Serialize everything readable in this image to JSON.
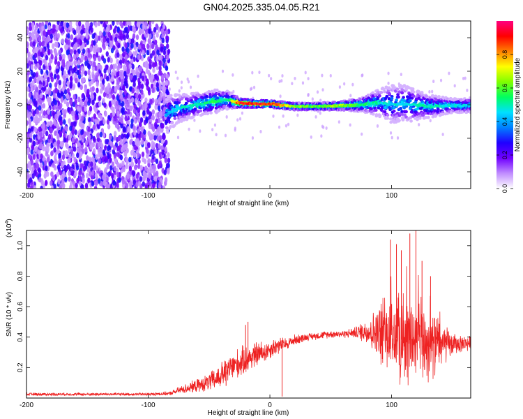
{
  "title": "GN04.2025.335.04.05.R21",
  "chart_data": [
    {
      "type": "heatmap",
      "title": "GN04.2025.335.04.05.R21",
      "xlabel": "Height of straight line (km)",
      "ylabel": "Frequency (Hz)",
      "xlim": [
        -200,
        165
      ],
      "ylim": [
        -50,
        50
      ],
      "xticks": [
        -200,
        -100,
        0,
        100
      ],
      "yticks": [
        -40,
        -20,
        0,
        20,
        40
      ],
      "colorbar": {
        "label": "Normalized spectral amplitude",
        "range": [
          0.0,
          1.0
        ],
        "ticks": [
          "0.0",
          "0.2",
          "0.4",
          "0.6",
          "0.8"
        ],
        "tick_values": [
          0.0,
          0.2,
          0.4,
          0.6,
          0.8
        ],
        "colors": [
          "#ffffff",
          "#c08cff",
          "#7000ff",
          "#2000ff",
          "#0080ff",
          "#00e0ff",
          "#00ff60",
          "#80ff00",
          "#ffff00",
          "#ff8000",
          "#ff0000",
          "#ff0080"
        ]
      },
      "noise_region_km": [
        -200,
        -83
      ],
      "signal_track": {
        "heights_km": [
          -85,
          -75,
          -60,
          -45,
          -35,
          -25,
          -10,
          0,
          20,
          40,
          60,
          75,
          85,
          100,
          110,
          130,
          150,
          165
        ],
        "center_freq_hz": [
          -6,
          -2,
          0,
          2,
          3,
          1,
          0.5,
          0.5,
          -1,
          -1,
          -0.5,
          0,
          1,
          0.5,
          0.5,
          -1,
          -0.5,
          -0.5
        ],
        "half_width_hz": [
          8,
          6,
          5,
          5,
          4,
          2,
          1.5,
          1.5,
          1.5,
          1.5,
          2,
          3,
          5,
          8,
          8,
          5,
          3,
          3
        ],
        "peak_amplitude": [
          0.45,
          0.5,
          0.55,
          0.6,
          0.55,
          0.95,
          0.97,
          0.97,
          0.7,
          0.65,
          0.7,
          0.6,
          0.55,
          0.5,
          0.5,
          0.55,
          0.5,
          0.5
        ]
      }
    },
    {
      "type": "line",
      "title": "",
      "xlabel": "Height of straight line (km)",
      "ylabel": "SNR (10 * v/v)",
      "scale_label": "(x10",
      "scale_exponent": "4",
      "scale_close": ")",
      "xlim": [
        -200,
        165
      ],
      "ylim": [
        0,
        1.1
      ],
      "xticks": [
        -200,
        -100,
        0,
        100
      ],
      "yticks": [
        "0.2",
        "0.4",
        "0.6",
        "0.8",
        "1.0"
      ],
      "ytick_values": [
        0.2,
        0.4,
        0.6,
        0.8,
        1.0
      ],
      "color": "#ee2222",
      "series": [
        {
          "name": "SNR",
          "x": [
            -200,
            -150,
            -100,
            -82,
            -75,
            -65,
            -55,
            -45,
            -40,
            -35,
            -30,
            -25,
            -20,
            -15,
            -10,
            -5,
            0,
            5,
            10,
            15,
            20,
            30,
            40,
            50,
            60,
            70,
            80,
            90,
            100,
            110,
            120,
            130,
            140,
            150,
            160,
            165
          ],
          "mean": [
            0.025,
            0.025,
            0.025,
            0.03,
            0.05,
            0.07,
            0.09,
            0.12,
            0.15,
            0.18,
            0.21,
            0.23,
            0.25,
            0.27,
            0.29,
            0.3,
            0.32,
            0.34,
            0.35,
            0.36,
            0.38,
            0.4,
            0.41,
            0.42,
            0.42,
            0.43,
            0.44,
            0.42,
            0.4,
            0.38,
            0.38,
            0.36,
            0.35,
            0.35,
            0.36,
            0.36
          ],
          "spread": [
            0.008,
            0.008,
            0.008,
            0.01,
            0.02,
            0.03,
            0.04,
            0.06,
            0.07,
            0.07,
            0.08,
            0.08,
            0.08,
            0.07,
            0.07,
            0.06,
            0.05,
            0.05,
            0.04,
            0.03,
            0.03,
            0.02,
            0.02,
            0.02,
            0.02,
            0.03,
            0.07,
            0.16,
            0.22,
            0.24,
            0.24,
            0.2,
            0.14,
            0.06,
            0.04,
            0.04
          ]
        }
      ],
      "spikes": [
        {
          "x": -36,
          "y": 0.08
        },
        {
          "x": -20,
          "y": 0.48
        },
        {
          "x": -18,
          "y": 0.5
        },
        {
          "x": 10,
          "y": 0.01
        },
        {
          "x": 99,
          "y": 1.04
        },
        {
          "x": 104,
          "y": 1.01
        },
        {
          "x": 108,
          "y": 0.97
        },
        {
          "x": 115,
          "y": 1.08
        },
        {
          "x": 120,
          "y": 1.1
        },
        {
          "x": 125,
          "y": 0.9
        },
        {
          "x": 132,
          "y": 0.8
        }
      ]
    }
  ]
}
